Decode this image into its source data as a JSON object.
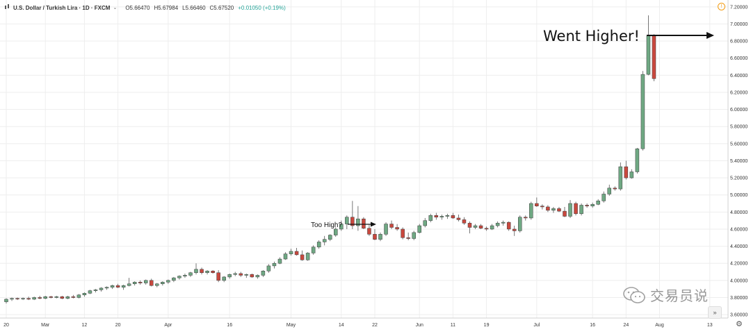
{
  "legend": {
    "symbol": "U.S. Dollar / Turkish Lira · 1D · FXCM",
    "open": "O5.66470",
    "high": "H5.67984",
    "low": "L5.66460",
    "close": "C5.67520",
    "change": "+0.01050 (+0.19%)"
  },
  "annotations": {
    "too_high": "Too High?",
    "went_higher": "Went Higher!"
  },
  "watermark": {
    "text": "交易员说"
  },
  "colors": {
    "up": "#6fa883",
    "down": "#c9483e",
    "wick": "#555555",
    "grid": "#eeeeee"
  },
  "icons": {
    "alert": "alert-icon",
    "settings": "gear-icon",
    "scroll": "double-chevron-right-icon"
  },
  "chart_data": {
    "type": "candlestick",
    "y_ticks": [
      3.6,
      3.8,
      4.0,
      4.2,
      4.4,
      4.6,
      4.8,
      5.0,
      5.2,
      5.4,
      5.6,
      5.8,
      6.0,
      6.2,
      6.4,
      6.6,
      6.8,
      7.0,
      7.2
    ],
    "y_tick_labels": [
      "3.60000",
      "3.80000",
      "4.00000",
      "4.20000",
      "4.40000",
      "4.60000",
      "4.80000",
      "5.00000",
      "5.20000",
      "5.40000",
      "5.60000",
      "5.80000",
      "6.00000",
      "6.20000",
      "6.40000",
      "6.60000",
      "6.80000",
      "7.00000",
      "7.20000"
    ],
    "ylim": [
      3.56,
      7.28
    ],
    "x_labels": [
      {
        "label": "20",
        "index": 0
      },
      {
        "label": "Mar",
        "index": 7
      },
      {
        "label": "12",
        "index": 14
      },
      {
        "label": "20",
        "index": 20
      },
      {
        "label": "Apr",
        "index": 29
      },
      {
        "label": "16",
        "index": 40
      },
      {
        "label": "May",
        "index": 51
      },
      {
        "label": "14",
        "index": 60
      },
      {
        "label": "22",
        "index": 66
      },
      {
        "label": "Jun",
        "index": 74
      },
      {
        "label": "11",
        "index": 80
      },
      {
        "label": "19",
        "index": 86
      },
      {
        "label": "Jul",
        "index": 95
      },
      {
        "label": "16",
        "index": 105
      },
      {
        "label": "24",
        "index": 111
      },
      {
        "label": "Aug",
        "index": 117
      },
      {
        "label": "13",
        "index": 126
      }
    ],
    "candles": [
      {
        "o": 3.75,
        "h": 3.79,
        "l": 3.73,
        "c": 3.78
      },
      {
        "o": 3.78,
        "h": 3.8,
        "l": 3.76,
        "c": 3.79
      },
      {
        "o": 3.79,
        "h": 3.8,
        "l": 3.77,
        "c": 3.785
      },
      {
        "o": 3.785,
        "h": 3.8,
        "l": 3.77,
        "c": 3.79
      },
      {
        "o": 3.79,
        "h": 3.81,
        "l": 3.77,
        "c": 3.78
      },
      {
        "o": 3.78,
        "h": 3.81,
        "l": 3.77,
        "c": 3.8
      },
      {
        "o": 3.8,
        "h": 3.82,
        "l": 3.78,
        "c": 3.79
      },
      {
        "o": 3.79,
        "h": 3.82,
        "l": 3.78,
        "c": 3.81
      },
      {
        "o": 3.81,
        "h": 3.82,
        "l": 3.79,
        "c": 3.8
      },
      {
        "o": 3.8,
        "h": 3.82,
        "l": 3.79,
        "c": 3.81
      },
      {
        "o": 3.81,
        "h": 3.82,
        "l": 3.78,
        "c": 3.79
      },
      {
        "o": 3.79,
        "h": 3.82,
        "l": 3.78,
        "c": 3.81
      },
      {
        "o": 3.81,
        "h": 3.83,
        "l": 3.79,
        "c": 3.8
      },
      {
        "o": 3.8,
        "h": 3.84,
        "l": 3.79,
        "c": 3.83
      },
      {
        "o": 3.83,
        "h": 3.86,
        "l": 3.81,
        "c": 3.85
      },
      {
        "o": 3.85,
        "h": 3.89,
        "l": 3.84,
        "c": 3.88
      },
      {
        "o": 3.88,
        "h": 3.9,
        "l": 3.86,
        "c": 3.89
      },
      {
        "o": 3.89,
        "h": 3.92,
        "l": 3.87,
        "c": 3.91
      },
      {
        "o": 3.91,
        "h": 3.93,
        "l": 3.89,
        "c": 3.92
      },
      {
        "o": 3.92,
        "h": 3.95,
        "l": 3.9,
        "c": 3.94
      },
      {
        "o": 3.94,
        "h": 3.96,
        "l": 3.91,
        "c": 3.92
      },
      {
        "o": 3.92,
        "h": 3.95,
        "l": 3.89,
        "c": 3.94
      },
      {
        "o": 3.94,
        "h": 4.03,
        "l": 3.93,
        "c": 3.96
      },
      {
        "o": 3.96,
        "h": 3.99,
        "l": 3.94,
        "c": 3.98
      },
      {
        "o": 3.98,
        "h": 4.0,
        "l": 3.95,
        "c": 3.97
      },
      {
        "o": 3.97,
        "h": 4.01,
        "l": 3.95,
        "c": 4.0
      },
      {
        "o": 4.0,
        "h": 4.02,
        "l": 3.93,
        "c": 3.94
      },
      {
        "o": 3.94,
        "h": 3.97,
        "l": 3.92,
        "c": 3.96
      },
      {
        "o": 3.96,
        "h": 3.99,
        "l": 3.94,
        "c": 3.98
      },
      {
        "o": 3.98,
        "h": 4.01,
        "l": 3.96,
        "c": 4.0
      },
      {
        "o": 4.0,
        "h": 4.04,
        "l": 3.98,
        "c": 4.03
      },
      {
        "o": 4.03,
        "h": 4.06,
        "l": 4.01,
        "c": 4.05
      },
      {
        "o": 4.05,
        "h": 4.08,
        "l": 4.03,
        "c": 4.06
      },
      {
        "o": 4.06,
        "h": 4.1,
        "l": 4.04,
        "c": 4.09
      },
      {
        "o": 4.09,
        "h": 4.2,
        "l": 4.07,
        "c": 4.13
      },
      {
        "o": 4.13,
        "h": 4.15,
        "l": 4.07,
        "c": 4.09
      },
      {
        "o": 4.09,
        "h": 4.12,
        "l": 4.07,
        "c": 4.11
      },
      {
        "o": 4.11,
        "h": 4.12,
        "l": 4.08,
        "c": 4.09
      },
      {
        "o": 4.09,
        "h": 4.12,
        "l": 3.98,
        "c": 4.0
      },
      {
        "o": 4.0,
        "h": 4.05,
        "l": 3.98,
        "c": 4.04
      },
      {
        "o": 4.04,
        "h": 4.08,
        "l": 4.02,
        "c": 4.07
      },
      {
        "o": 4.07,
        "h": 4.1,
        "l": 4.05,
        "c": 4.08
      },
      {
        "o": 4.08,
        "h": 4.1,
        "l": 4.04,
        "c": 4.06
      },
      {
        "o": 4.06,
        "h": 4.08,
        "l": 4.03,
        "c": 4.07
      },
      {
        "o": 4.07,
        "h": 4.08,
        "l": 4.03,
        "c": 4.04
      },
      {
        "o": 4.04,
        "h": 4.07,
        "l": 4.02,
        "c": 4.06
      },
      {
        "o": 4.06,
        "h": 4.12,
        "l": 4.04,
        "c": 4.11
      },
      {
        "o": 4.11,
        "h": 4.19,
        "l": 4.09,
        "c": 4.17
      },
      {
        "o": 4.17,
        "h": 4.22,
        "l": 4.14,
        "c": 4.2
      },
      {
        "o": 4.2,
        "h": 4.27,
        "l": 4.19,
        "c": 4.25
      },
      {
        "o": 4.25,
        "h": 4.33,
        "l": 4.24,
        "c": 4.31
      },
      {
        "o": 4.31,
        "h": 4.37,
        "l": 4.29,
        "c": 4.34
      },
      {
        "o": 4.34,
        "h": 4.38,
        "l": 4.29,
        "c": 4.3
      },
      {
        "o": 4.3,
        "h": 4.35,
        "l": 4.23,
        "c": 4.24
      },
      {
        "o": 4.24,
        "h": 4.33,
        "l": 4.23,
        "c": 4.32
      },
      {
        "o": 4.32,
        "h": 4.41,
        "l": 4.3,
        "c": 4.39
      },
      {
        "o": 4.39,
        "h": 4.47,
        "l": 4.37,
        "c": 4.45
      },
      {
        "o": 4.45,
        "h": 4.52,
        "l": 4.41,
        "c": 4.48
      },
      {
        "o": 4.48,
        "h": 4.54,
        "l": 4.46,
        "c": 4.53
      },
      {
        "o": 4.53,
        "h": 4.62,
        "l": 4.51,
        "c": 4.6
      },
      {
        "o": 4.6,
        "h": 4.7,
        "l": 4.58,
        "c": 4.66
      },
      {
        "o": 4.66,
        "h": 4.76,
        "l": 4.6,
        "c": 4.74
      },
      {
        "o": 4.74,
        "h": 4.93,
        "l": 4.6,
        "c": 4.64
      },
      {
        "o": 4.64,
        "h": 4.87,
        "l": 4.58,
        "c": 4.72
      },
      {
        "o": 4.72,
        "h": 4.74,
        "l": 4.6,
        "c": 4.61
      },
      {
        "o": 4.61,
        "h": 4.65,
        "l": 4.52,
        "c": 4.54
      },
      {
        "o": 4.54,
        "h": 4.6,
        "l": 4.47,
        "c": 4.48
      },
      {
        "o": 4.48,
        "h": 4.56,
        "l": 4.46,
        "c": 4.54
      },
      {
        "o": 4.54,
        "h": 4.68,
        "l": 4.52,
        "c": 4.66
      },
      {
        "o": 4.66,
        "h": 4.7,
        "l": 4.6,
        "c": 4.62
      },
      {
        "o": 4.62,
        "h": 4.66,
        "l": 4.58,
        "c": 4.6
      },
      {
        "o": 4.6,
        "h": 4.62,
        "l": 4.48,
        "c": 4.5
      },
      {
        "o": 4.5,
        "h": 4.56,
        "l": 4.47,
        "c": 4.49
      },
      {
        "o": 4.49,
        "h": 4.58,
        "l": 4.47,
        "c": 4.56
      },
      {
        "o": 4.56,
        "h": 4.66,
        "l": 4.55,
        "c": 4.64
      },
      {
        "o": 4.64,
        "h": 4.73,
        "l": 4.62,
        "c": 4.7
      },
      {
        "o": 4.7,
        "h": 4.78,
        "l": 4.68,
        "c": 4.76
      },
      {
        "o": 4.76,
        "h": 4.79,
        "l": 4.71,
        "c": 4.74
      },
      {
        "o": 4.74,
        "h": 4.77,
        "l": 4.71,
        "c": 4.75
      },
      {
        "o": 4.75,
        "h": 4.78,
        "l": 4.72,
        "c": 4.76
      },
      {
        "o": 4.76,
        "h": 4.79,
        "l": 4.72,
        "c": 4.73
      },
      {
        "o": 4.73,
        "h": 4.77,
        "l": 4.69,
        "c": 4.71
      },
      {
        "o": 4.71,
        "h": 4.74,
        "l": 4.65,
        "c": 4.67
      },
      {
        "o": 4.67,
        "h": 4.69,
        "l": 4.55,
        "c": 4.62
      },
      {
        "o": 4.62,
        "h": 4.66,
        "l": 4.6,
        "c": 4.64
      },
      {
        "o": 4.64,
        "h": 4.66,
        "l": 4.6,
        "c": 4.61
      },
      {
        "o": 4.61,
        "h": 4.63,
        "l": 4.58,
        "c": 4.6
      },
      {
        "o": 4.6,
        "h": 4.66,
        "l": 4.59,
        "c": 4.64
      },
      {
        "o": 4.64,
        "h": 4.69,
        "l": 4.62,
        "c": 4.67
      },
      {
        "o": 4.67,
        "h": 4.7,
        "l": 4.64,
        "c": 4.68
      },
      {
        "o": 4.68,
        "h": 4.69,
        "l": 4.58,
        "c": 4.6
      },
      {
        "o": 4.6,
        "h": 4.64,
        "l": 4.52,
        "c": 4.58
      },
      {
        "o": 4.58,
        "h": 4.76,
        "l": 4.56,
        "c": 4.74
      },
      {
        "o": 4.74,
        "h": 4.76,
        "l": 4.7,
        "c": 4.73
      },
      {
        "o": 4.73,
        "h": 4.92,
        "l": 4.71,
        "c": 4.9
      },
      {
        "o": 4.9,
        "h": 4.97,
        "l": 4.86,
        "c": 4.87
      },
      {
        "o": 4.87,
        "h": 4.89,
        "l": 4.83,
        "c": 4.86
      },
      {
        "o": 4.86,
        "h": 4.88,
        "l": 4.8,
        "c": 4.82
      },
      {
        "o": 4.82,
        "h": 4.86,
        "l": 4.79,
        "c": 4.84
      },
      {
        "o": 4.84,
        "h": 4.86,
        "l": 4.8,
        "c": 4.81
      },
      {
        "o": 4.81,
        "h": 4.86,
        "l": 4.74,
        "c": 4.75
      },
      {
        "o": 4.75,
        "h": 4.94,
        "l": 4.73,
        "c": 4.9
      },
      {
        "o": 4.9,
        "h": 4.92,
        "l": 4.76,
        "c": 4.78
      },
      {
        "o": 4.78,
        "h": 4.9,
        "l": 4.76,
        "c": 4.88
      },
      {
        "o": 4.88,
        "h": 4.9,
        "l": 4.85,
        "c": 4.87
      },
      {
        "o": 4.87,
        "h": 4.91,
        "l": 4.85,
        "c": 4.89
      },
      {
        "o": 4.89,
        "h": 4.95,
        "l": 4.88,
        "c": 4.93
      },
      {
        "o": 4.93,
        "h": 5.04,
        "l": 4.91,
        "c": 5.01
      },
      {
        "o": 5.01,
        "h": 5.12,
        "l": 4.99,
        "c": 5.08
      },
      {
        "o": 5.08,
        "h": 5.1,
        "l": 5.05,
        "c": 5.07
      },
      {
        "o": 5.07,
        "h": 5.38,
        "l": 5.05,
        "c": 5.33
      },
      {
        "o": 5.33,
        "h": 5.4,
        "l": 5.18,
        "c": 5.2
      },
      {
        "o": 5.2,
        "h": 5.3,
        "l": 5.19,
        "c": 5.27
      },
      {
        "o": 5.27,
        "h": 5.55,
        "l": 5.25,
        "c": 5.54
      },
      {
        "o": 5.54,
        "h": 6.45,
        "l": 5.52,
        "c": 6.41
      },
      {
        "o": 6.41,
        "h": 7.1,
        "l": 6.4,
        "c": 6.86
      },
      {
        "o": 6.86,
        "h": 6.88,
        "l": 6.33,
        "c": 6.36
      }
    ]
  }
}
